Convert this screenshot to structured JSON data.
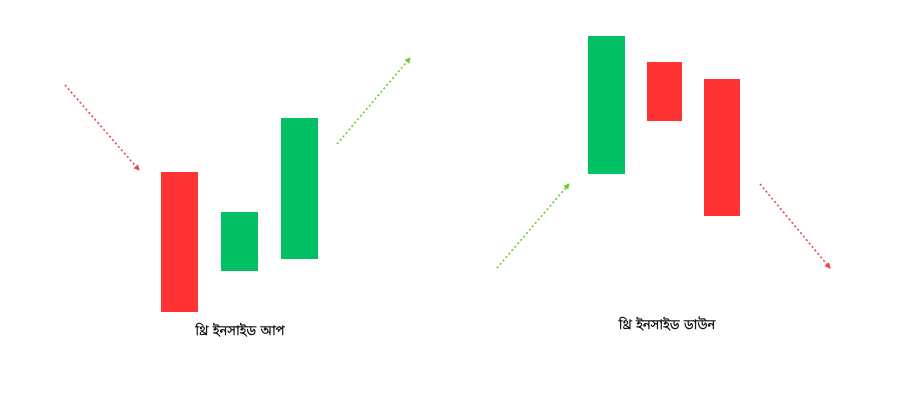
{
  "colors": {
    "bullish": "#02C064",
    "bearish": "#FF3333",
    "arrow_bullish": "#66CC33",
    "arrow_bearish": "#EE4444",
    "caption": "#111111"
  },
  "patterns": [
    {
      "label": "থ্রি ইনসাইড আপ",
      "candles": [
        {
          "direction": "bearish"
        },
        {
          "direction": "bullish"
        },
        {
          "direction": "bullish"
        }
      ],
      "trend_in": "down",
      "trend_out": "up"
    },
    {
      "label": "থ্রি ইনসাইড ডাউন",
      "candles": [
        {
          "direction": "bullish"
        },
        {
          "direction": "bearish"
        },
        {
          "direction": "bearish"
        }
      ],
      "trend_in": "up",
      "trend_out": "down"
    }
  ]
}
